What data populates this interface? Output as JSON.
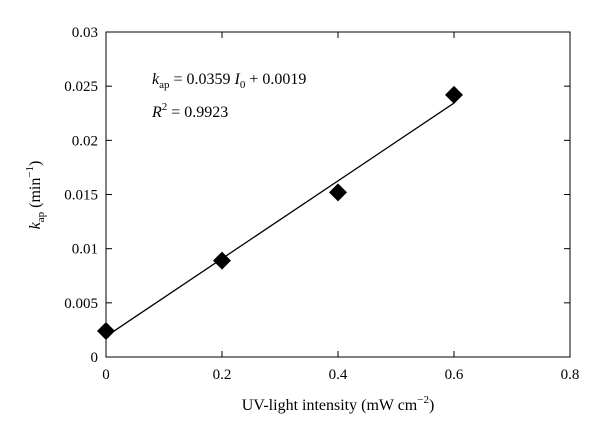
{
  "chart_data": {
    "type": "scatter",
    "title": "",
    "xlabel": {
      "text": "UV-light intensity (mW cm",
      "sup": "−2",
      "close": ")"
    },
    "ylabel": {
      "symbol": "k",
      "sub": "ap",
      "unit_open": " (min",
      "sup": "−1",
      "close": ")"
    },
    "xlim": [
      0,
      0.8
    ],
    "ylim": [
      0,
      0.03
    ],
    "xticks": [
      0,
      0.2,
      0.4,
      0.6,
      0.8
    ],
    "xtick_labels": [
      "0",
      "0.2",
      "0.4",
      "0.6",
      "0.8"
    ],
    "yticks": [
      0,
      0.005,
      0.01,
      0.015,
      0.02,
      0.025,
      0.03
    ],
    "ytick_labels": [
      "0",
      "0.005",
      "0.01",
      "0.015",
      "0.02",
      "0.025",
      "0.03"
    ],
    "grid": false,
    "series": [
      {
        "marker": "diamond",
        "color": "#000000",
        "x": [
          0,
          0.2,
          0.4,
          0.6
        ],
        "y": [
          0.0024,
          0.0089,
          0.0152,
          0.0242
        ]
      }
    ],
    "fit_line": {
      "slope": 0.0359,
      "intercept": 0.0019,
      "x_range": [
        0,
        0.6
      ],
      "color": "#000000"
    },
    "annotations": {
      "equation": {
        "k": "k",
        "k_sub": "ap",
        "middle": " = 0.0359 ",
        "i": "I",
        "i_sub": "0",
        "tail": " + 0.0019"
      },
      "r2": {
        "r": "R",
        "r_sup": "2",
        "tail": " = 0.9923"
      }
    }
  }
}
